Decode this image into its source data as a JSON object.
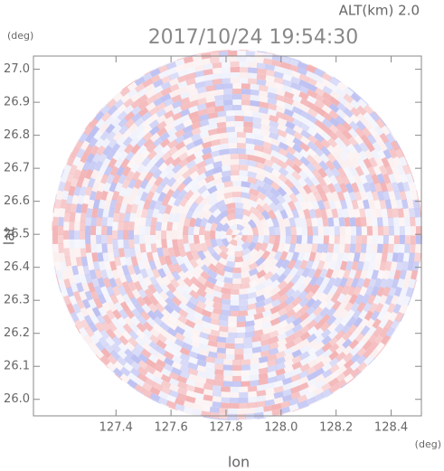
{
  "chart_data": {
    "type": "radar-ppi",
    "title": "2017/10/24 19:54:30",
    "altitude_label": "ALT(km)  2.0",
    "x_label": "lon",
    "x_unit": "(deg)",
    "y_label": "lat",
    "y_unit": "(deg)",
    "xlim": [
      127.1,
      128.51
    ],
    "ylim": [
      25.95,
      27.04
    ],
    "xticks": [
      127.4,
      127.6,
      127.8,
      {
        "value": 128.0,
        "label": "128.0"
      },
      128.2,
      128.4
    ],
    "yticks": [
      {
        "value": 26.0,
        "label": "26.0"
      },
      26.1,
      26.2,
      26.3,
      26.4,
      26.5,
      26.6,
      26.7,
      26.8,
      26.9,
      {
        "value": 27.0,
        "label": "27.0"
      }
    ],
    "colors": [
      "#f3b2b4",
      "#bcc0f2",
      "#fbeeee",
      "#eef0fb"
    ]
  }
}
